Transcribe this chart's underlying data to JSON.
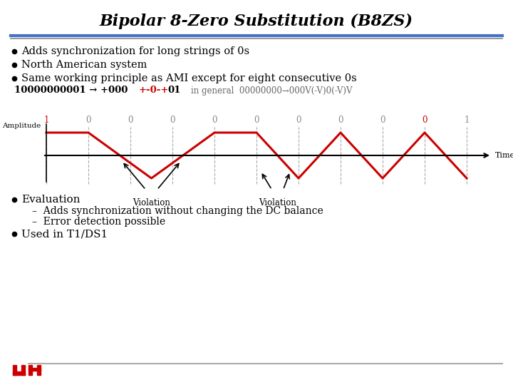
{
  "title": "Bipolar 8-Zero Substitution (B8ZS)",
  "slide_bg": "#ffffff",
  "red_color": "#cc0000",
  "bullet_points": [
    "Adds synchronization for long strings of 0s",
    "North American system",
    "Same working principle as AMI except for eight consecutive 0s"
  ],
  "bit_labels": [
    "1",
    "0",
    "0",
    "0",
    "0",
    "0",
    "0",
    "0",
    "0",
    "0",
    "1"
  ],
  "bit_colors": [
    "#cc0000",
    "#888888",
    "#888888",
    "#888888",
    "#888888",
    "#888888",
    "#888888",
    "#888888",
    "#888888",
    "#cc0000",
    "#888888"
  ],
  "eval_bullet": "Evaluation",
  "sub_bullets": [
    "–  Adds synchronization without changing the DC balance",
    "–  Error detection possible"
  ],
  "last_bullet": "Used in T1/DS1",
  "header_line_color1": "#4472c4",
  "header_line_color2": "#aaaaaa",
  "waveform_note_black1": "10000000001 → +000",
  "waveform_note_red": "+-0-+",
  "waveform_note_black2": "01",
  "waveform_note_gray": "in general  00000000→000V(-V)0(-V)V"
}
